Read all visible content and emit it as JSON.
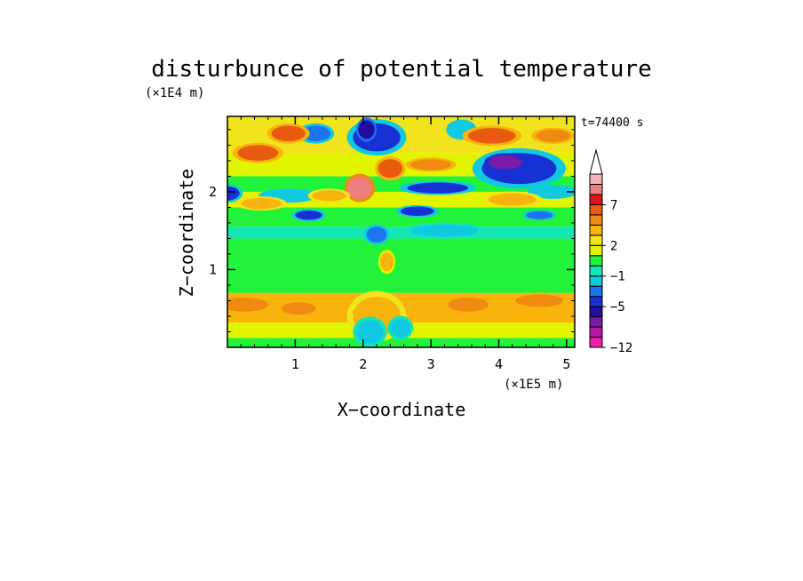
{
  "chart_data": {
    "type": "heatmap",
    "title": "disturbunce of potential temperature",
    "xlabel": "X−coordinate",
    "ylabel": "Z−coordinate",
    "x_unit": "(×1E5 m)",
    "y_unit": "(×1E4 m)",
    "time_label": "t=74400 s",
    "xlim": [
      0,
      5.12
    ],
    "ylim": [
      0,
      2.97
    ],
    "x_ticks": [
      1,
      2,
      3,
      4,
      5
    ],
    "x_tick_labels": [
      "1",
      "2",
      "3",
      "4",
      "5"
    ],
    "y_ticks": [
      1,
      2
    ],
    "y_tick_labels": [
      "1",
      "2"
    ],
    "colorbar": {
      "levels": [
        -12,
        -11,
        -9,
        -7,
        -5,
        -4,
        -3,
        -1,
        0,
        1,
        2,
        3,
        5,
        6,
        7,
        8,
        9,
        11
      ],
      "labels": [
        {
          "value": 7,
          "text": "7"
        },
        {
          "value": 2,
          "text": "2"
        },
        {
          "value": -1,
          "text": "−1"
        },
        {
          "value": -5,
          "text": "−5"
        },
        {
          "value": -12,
          "text": "−12"
        }
      ],
      "colors": [
        "#ee1fa6",
        "#b5179f",
        "#7a1aa8",
        "#200ea1",
        "#1730d4",
        "#1d74f0",
        "#12c9e2",
        "#12e6b4",
        "#22f23a",
        "#e1f500",
        "#f2e41c",
        "#f8b40c",
        "#f08a10",
        "#e85a10",
        "#e01414",
        "#ec8080",
        "#f4b5b8"
      ],
      "extend": "max"
    },
    "bands": [
      {
        "z0": 0.0,
        "z1": 0.12,
        "value": 0.5
      },
      {
        "z0": 0.12,
        "z1": 0.32,
        "value": 1.5
      },
      {
        "z0": 0.32,
        "z1": 0.7,
        "value": 3.5
      },
      {
        "z0": 0.7,
        "z1": 1.05,
        "value": 0.5
      },
      {
        "z0": 1.05,
        "z1": 1.4,
        "value": 0.3
      },
      {
        "z0": 1.4,
        "z1": 1.55,
        "value": -0.5
      },
      {
        "z0": 1.55,
        "z1": 1.8,
        "value": 0.7
      },
      {
        "z0": 1.8,
        "z1": 2.0,
        "value": 1.5
      },
      {
        "z0": 2.0,
        "z1": 2.2,
        "value": 0.6
      },
      {
        "z0": 2.2,
        "z1": 2.5,
        "value": 1.5
      },
      {
        "z0": 2.5,
        "z1": 2.97,
        "value": 2.5
      }
    ],
    "features": [
      {
        "x": 0.25,
        "z": 0.55,
        "rx": 0.35,
        "rz": 0.09,
        "value": 5.5
      },
      {
        "x": 1.05,
        "z": 0.5,
        "rx": 0.25,
        "rz": 0.08,
        "value": 5.5
      },
      {
        "x": 3.55,
        "z": 0.55,
        "rx": 0.3,
        "rz": 0.09,
        "value": 5.5
      },
      {
        "x": 4.6,
        "z": 0.6,
        "rx": 0.35,
        "rz": 0.08,
        "value": 5.0
      },
      {
        "x": 0.0,
        "z": 1.98,
        "rx": 0.18,
        "rz": 0.09,
        "value": -4.5
      },
      {
        "x": 0.9,
        "z": 1.95,
        "rx": 0.35,
        "rz": 0.07,
        "value": -2.0
      },
      {
        "x": 1.2,
        "z": 1.7,
        "rx": 0.2,
        "rz": 0.06,
        "value": -4.5
      },
      {
        "x": 2.8,
        "z": 1.75,
        "rx": 0.25,
        "rz": 0.06,
        "value": -4.5
      },
      {
        "x": 4.6,
        "z": 1.7,
        "rx": 0.2,
        "rz": 0.05,
        "value": -4.0
      },
      {
        "x": 3.2,
        "z": 1.5,
        "rx": 0.5,
        "rz": 0.08,
        "value": -1.5
      },
      {
        "x": 4.3,
        "z": 2.3,
        "rx": 0.55,
        "rz": 0.2,
        "value": -4.8
      },
      {
        "x": 4.1,
        "z": 2.38,
        "rx": 0.25,
        "rz": 0.09,
        "value": -8.0
      },
      {
        "x": 3.1,
        "z": 2.05,
        "rx": 0.45,
        "rz": 0.07,
        "value": -4.2
      },
      {
        "x": 4.8,
        "z": 2.0,
        "rx": 0.3,
        "rz": 0.07,
        "value": -2.0
      },
      {
        "x": 1.3,
        "z": 2.75,
        "rx": 0.22,
        "rz": 0.1,
        "value": -4.0
      },
      {
        "x": 2.2,
        "z": 2.7,
        "rx": 0.35,
        "rz": 0.18,
        "value": -5.0
      },
      {
        "x": 2.05,
        "z": 2.8,
        "rx": 0.12,
        "rz": 0.12,
        "value": -6.0
      },
      {
        "x": 3.45,
        "z": 2.8,
        "rx": 0.18,
        "rz": 0.1,
        "value": -3.0
      },
      {
        "x": 0.45,
        "z": 2.5,
        "rx": 0.3,
        "rz": 0.1,
        "value": 6.5
      },
      {
        "x": 0.9,
        "z": 2.75,
        "rx": 0.25,
        "rz": 0.1,
        "value": 6.0
      },
      {
        "x": 1.95,
        "z": 2.05,
        "rx": 0.18,
        "rz": 0.14,
        "value": 8.5
      },
      {
        "x": 2.4,
        "z": 2.3,
        "rx": 0.18,
        "rz": 0.12,
        "value": 6.5
      },
      {
        "x": 3.9,
        "z": 2.72,
        "rx": 0.35,
        "rz": 0.1,
        "value": 6.0
      },
      {
        "x": 4.8,
        "z": 2.72,
        "rx": 0.25,
        "rz": 0.08,
        "value": 5.5
      },
      {
        "x": 3.0,
        "z": 2.35,
        "rx": 0.3,
        "rz": 0.07,
        "value": 5.0
      },
      {
        "x": 0.5,
        "z": 1.85,
        "rx": 0.3,
        "rz": 0.07,
        "value": 4.5
      },
      {
        "x": 1.5,
        "z": 1.95,
        "rx": 0.25,
        "rz": 0.07,
        "value": 4.5
      },
      {
        "x": 4.2,
        "z": 1.9,
        "rx": 0.35,
        "rz": 0.08,
        "value": 4.0
      },
      {
        "x": 2.2,
        "z": 1.45,
        "rx": 0.15,
        "rz": 0.1,
        "value": -4.0
      },
      {
        "x": 2.35,
        "z": 1.1,
        "rx": 0.1,
        "rz": 0.12,
        "value": 3.0
      },
      {
        "x": 2.2,
        "z": 0.4,
        "rx": 0.35,
        "rz": 0.25,
        "value": 4.5
      },
      {
        "x": 2.1,
        "z": 0.2,
        "rx": 0.2,
        "rz": 0.15,
        "value": -1.5
      },
      {
        "x": 2.55,
        "z": 0.25,
        "rx": 0.15,
        "rz": 0.12,
        "value": -1.5
      }
    ]
  }
}
